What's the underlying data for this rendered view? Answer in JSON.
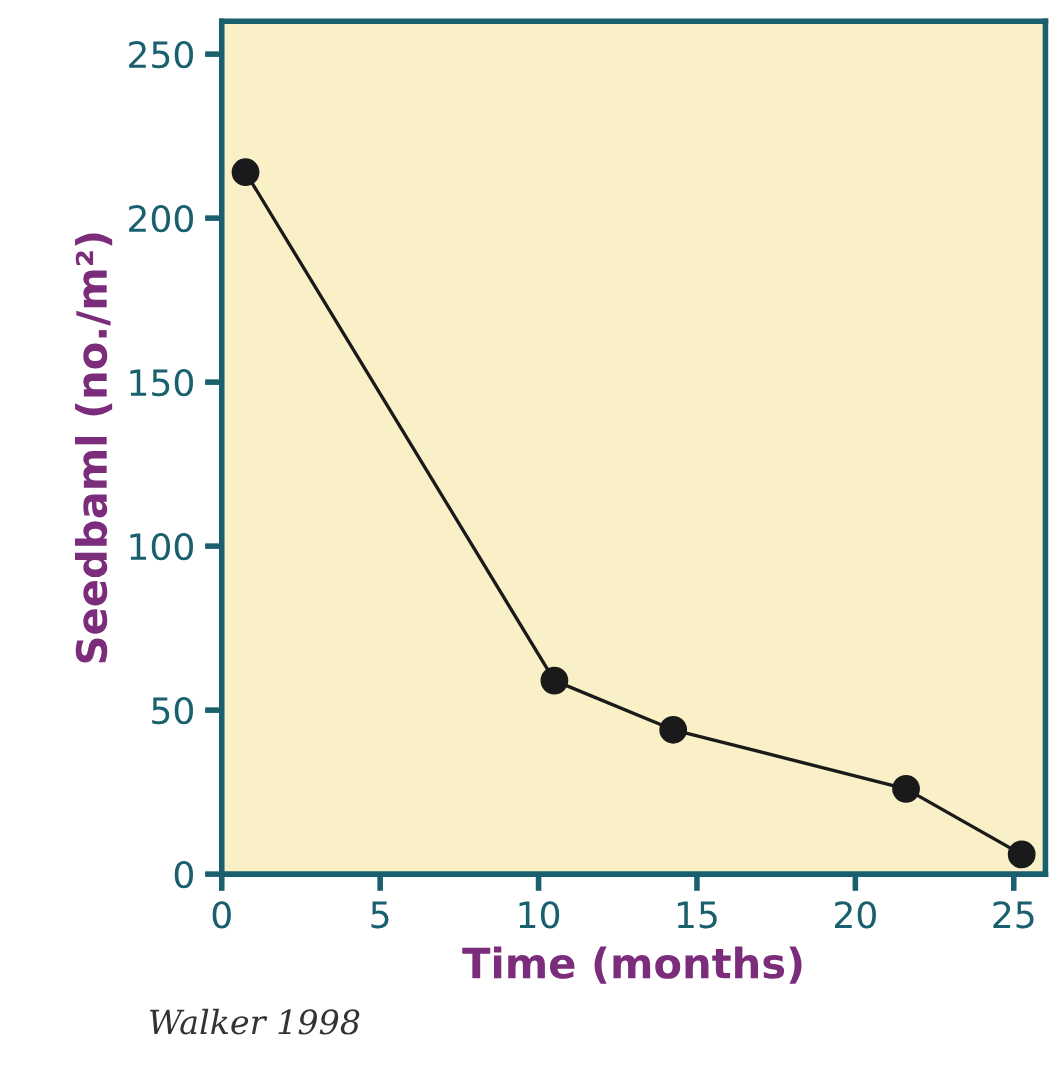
{
  "chart_data": {
    "type": "line",
    "xlabel": "Time (months)",
    "ylabel": "Seedbaml (no./m²)",
    "x": [
      0.75,
      10.5,
      14.25,
      21.6,
      25.25
    ],
    "series": [
      {
        "color": "#1a1a1a",
        "values": [
          214,
          59,
          44,
          26,
          6
        ]
      }
    ],
    "xlim": [
      0,
      26
    ],
    "xticks": [
      0,
      5,
      10,
      15,
      20,
      25
    ],
    "ylim": [
      0,
      260
    ],
    "yticks": [
      0,
      50,
      100,
      150,
      200,
      250
    ],
    "marker": "circle",
    "line_style": "solid",
    "grid": false,
    "legend": false,
    "annotations": [
      "Walker 1998"
    ]
  }
}
